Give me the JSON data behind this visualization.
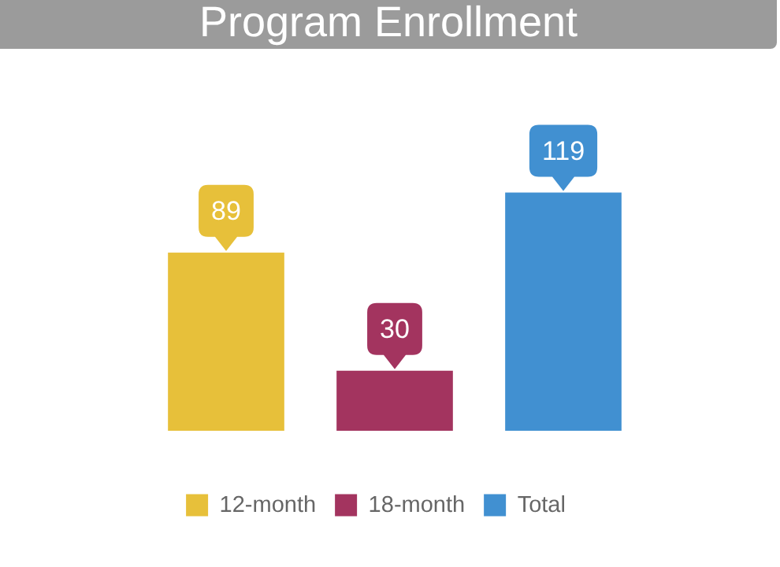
{
  "chart_data": {
    "type": "bar",
    "title": "Program Enrollment",
    "categories": [
      null
    ],
    "series": [
      {
        "name": "12-month",
        "color": "#e7c03a",
        "values": [
          89
        ]
      },
      {
        "name": "18-month",
        "color": "#a3345f",
        "values": [
          30
        ]
      },
      {
        "name": "Total",
        "color": "#4190d1",
        "values": [
          119
        ]
      }
    ],
    "data_labels": true,
    "legend": "bottom"
  }
}
